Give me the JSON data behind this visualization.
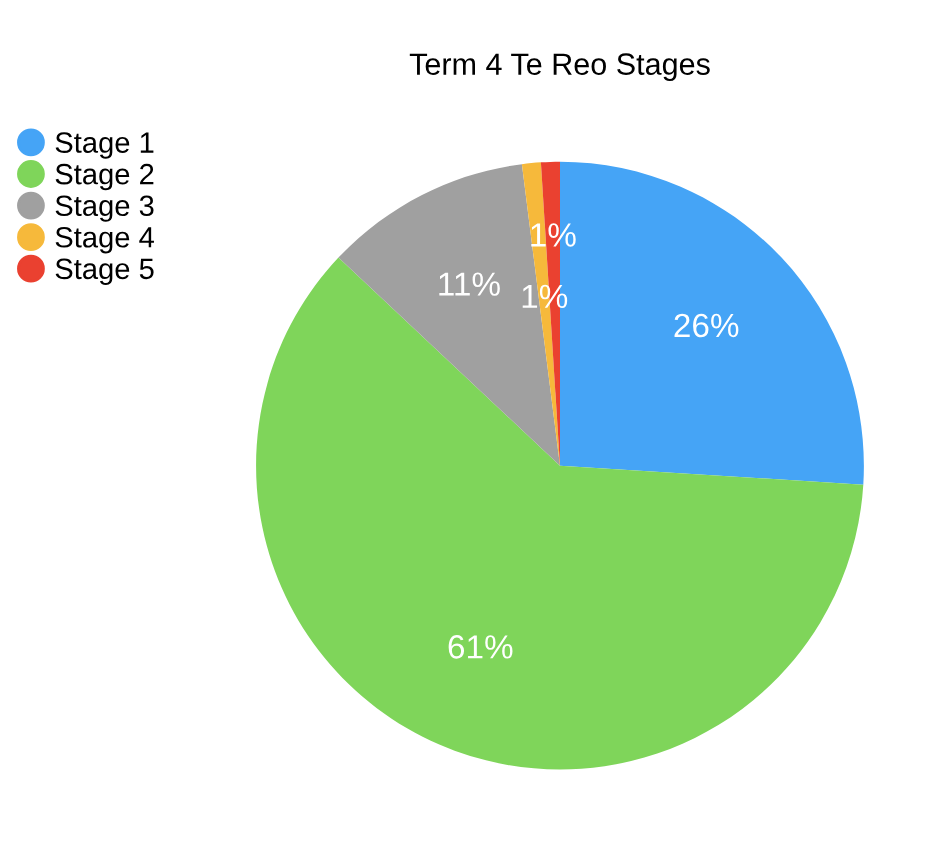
{
  "chart_data": {
    "type": "pie",
    "title": "Term 4 Te Reo Stages",
    "categories": [
      "Stage 1",
      "Stage 2",
      "Stage 3",
      "Stage 4",
      "Stage 5"
    ],
    "values": [
      26,
      61,
      11,
      1,
      1
    ],
    "colors": [
      "#45a4f6",
      "#7fd55a",
      "#a0a0a0",
      "#f6b93b",
      "#ea4130"
    ],
    "value_labels": [
      "26%",
      "61%",
      "11%",
      "1%",
      "1%"
    ],
    "legend": "top left"
  }
}
